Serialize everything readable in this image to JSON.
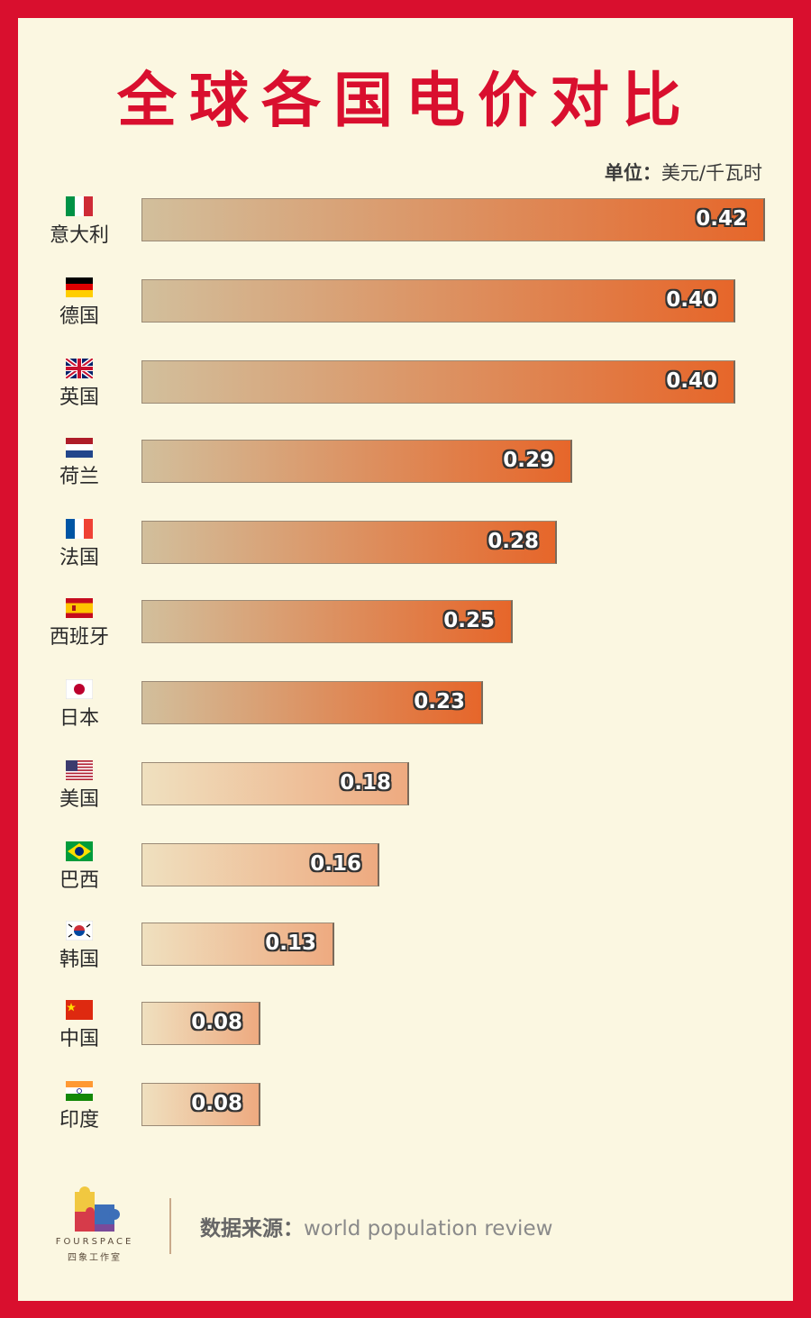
{
  "title": "全球各国电价对比",
  "unit_label": "单位：",
  "unit_value": "美元/千瓦时",
  "source_label": "数据来源：",
  "source_value": "world population review",
  "logo": {
    "text": "FOURSPACE",
    "sub": "四象工作室"
  },
  "chart_data": {
    "type": "bar",
    "orientation": "horizontal",
    "title": "全球各国电价对比",
    "unit": "美元/千瓦时",
    "categories": [
      "意大利",
      "德国",
      "英国",
      "荷兰",
      "法国",
      "西班牙",
      "日本",
      "美国",
      "巴西",
      "韩国",
      "中国",
      "印度"
    ],
    "values": [
      0.42,
      0.4,
      0.4,
      0.29,
      0.28,
      0.25,
      0.23,
      0.18,
      0.16,
      0.13,
      0.08,
      0.08
    ],
    "value_labels": [
      "0.42",
      "0.40",
      "0.40",
      "0.29",
      "0.28",
      "0.25",
      "0.23",
      "0.18",
      "0.16",
      "0.13",
      "0.08",
      "0.08"
    ],
    "flags": [
      "italy-flag-icon",
      "germany-flag-icon",
      "uk-flag-icon",
      "netherlands-flag-icon",
      "france-flag-icon",
      "spain-flag-icon",
      "japan-flag-icon",
      "usa-flag-icon",
      "brazil-flag-icon",
      "korea-flag-icon",
      "china-flag-icon",
      "india-flag-icon"
    ],
    "xlim": [
      0,
      0.42
    ],
    "grid": false,
    "legend": "none"
  },
  "colors": {
    "background": "#d90f2e",
    "panel": "#fbf7e1",
    "title": "#d90f2e",
    "bar_dark_start": "#d2bf9c",
    "bar_dark_end": "#e6662a",
    "bar_light_start": "#efe0bf",
    "bar_light_end": "#eeaa80"
  }
}
